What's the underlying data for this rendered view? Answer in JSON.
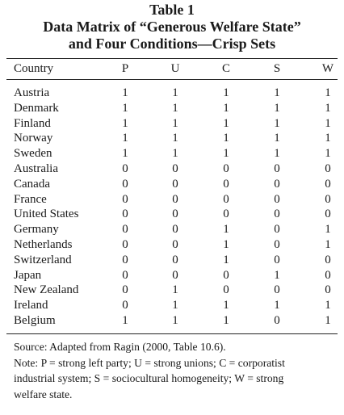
{
  "table_label": "Table 1",
  "title_line_1": "Data Matrix of “Generous Welfare State”",
  "title_line_2": "and Four Conditions—Crisp Sets",
  "columns": [
    "Country",
    "P",
    "U",
    "C",
    "S",
    "W"
  ],
  "rows": [
    {
      "country": "Austria",
      "values": [
        "1",
        "1",
        "1",
        "1",
        "1"
      ]
    },
    {
      "country": "Denmark",
      "values": [
        "1",
        "1",
        "1",
        "1",
        "1"
      ]
    },
    {
      "country": "Finland",
      "values": [
        "1",
        "1",
        "1",
        "1",
        "1"
      ]
    },
    {
      "country": "Norway",
      "values": [
        "1",
        "1",
        "1",
        "1",
        "1"
      ]
    },
    {
      "country": "Sweden",
      "values": [
        "1",
        "1",
        "1",
        "1",
        "1"
      ]
    },
    {
      "country": "Australia",
      "values": [
        "0",
        "0",
        "0",
        "0",
        "0"
      ]
    },
    {
      "country": "Canada",
      "values": [
        "0",
        "0",
        "0",
        "0",
        "0"
      ]
    },
    {
      "country": "France",
      "values": [
        "0",
        "0",
        "0",
        "0",
        "0"
      ]
    },
    {
      "country": "United States",
      "values": [
        "0",
        "0",
        "0",
        "0",
        "0"
      ]
    },
    {
      "country": "Germany",
      "values": [
        "0",
        "0",
        "1",
        "0",
        "1"
      ]
    },
    {
      "country": "Netherlands",
      "values": [
        "0",
        "0",
        "1",
        "0",
        "1"
      ]
    },
    {
      "country": "Switzerland",
      "values": [
        "0",
        "0",
        "1",
        "0",
        "0"
      ]
    },
    {
      "country": "Japan",
      "values": [
        "0",
        "0",
        "0",
        "1",
        "0"
      ]
    },
    {
      "country": "New Zealand",
      "values": [
        "0",
        "1",
        "0",
        "0",
        "0"
      ]
    },
    {
      "country": "Ireland",
      "values": [
        "0",
        "1",
        "1",
        "1",
        "1"
      ]
    },
    {
      "country": "Belgium",
      "values": [
        "1",
        "1",
        "1",
        "0",
        "1"
      ]
    }
  ],
  "notes": {
    "source": "Source: Adapted from Ragin (2000, Table 10.6).",
    "note_line_1": "Note: P = strong left party; U = strong unions; C = corporatist",
    "note_line_2": "industrial system; S = sociocultural homogeneity; W = strong",
    "note_line_3": "welfare state."
  }
}
